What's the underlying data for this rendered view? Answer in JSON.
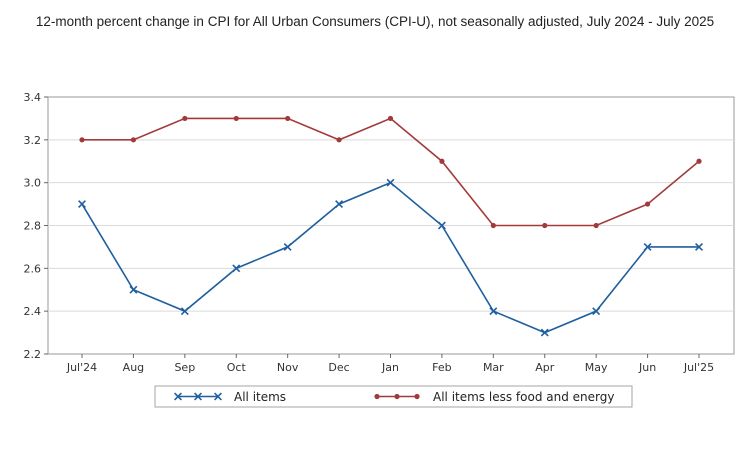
{
  "chart_data": {
    "type": "line",
    "title": "12-month percent change in CPI for All Urban Consumers (CPI-U), not seasonally adjusted, July 2024 - July 2025",
    "categories": [
      "Jul'24",
      "Aug",
      "Sep",
      "Oct",
      "Nov",
      "Dec",
      "Jan",
      "Feb",
      "Mar",
      "Apr",
      "May",
      "Jun",
      "Jul'25"
    ],
    "series": [
      {
        "name": "All items",
        "color": "#1f5f9f",
        "marker": "x",
        "values": [
          2.9,
          2.5,
          2.4,
          2.6,
          2.7,
          2.9,
          3.0,
          2.8,
          2.4,
          2.3,
          2.4,
          2.7,
          2.7
        ]
      },
      {
        "name": "All items less food and energy",
        "color": "#a33a3a",
        "marker": "dot",
        "values": [
          3.2,
          3.2,
          3.3,
          3.3,
          3.3,
          3.2,
          3.3,
          3.1,
          2.8,
          2.8,
          2.8,
          2.9,
          3.1
        ]
      }
    ],
    "yticks": [
      "2.2",
      "2.4",
      "2.6",
      "2.8",
      "3.0",
      "3.2",
      "3.4"
    ],
    "ylim": [
      2.2,
      3.4
    ],
    "xlabel": "",
    "ylabel": "",
    "grid": true,
    "legend": "bottom"
  }
}
